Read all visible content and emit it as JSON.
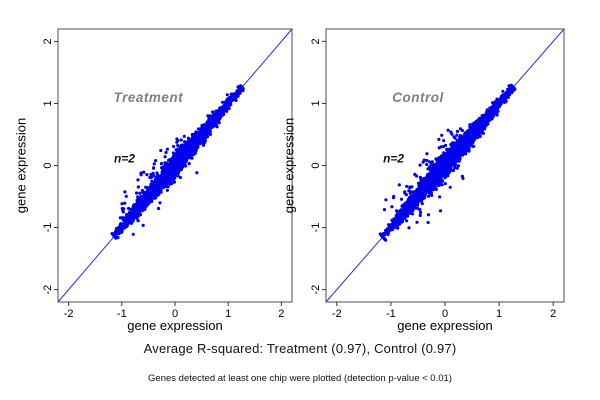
{
  "figure": {
    "captions": {
      "r_squared_summary": "Average R-squared: Treatment (0.97), Control (0.97)",
      "detection_note": "Genes detected at least one chip were plotted (detection p-value < 0.01)"
    },
    "colors": {
      "points": "#0000ee",
      "identity_line": "#2b2bee",
      "panel_border": "#4d4d4d",
      "tick_color": "#333333",
      "tick_text": "#000000",
      "panel_title": "#808080",
      "annotation": "#111111",
      "background": "#ffffff"
    }
  },
  "chart_data": [
    {
      "type": "scatter",
      "panel_title": "Treatment",
      "annotation": "n=2",
      "xlabel": "gene expression",
      "ylabel": "gene expression",
      "xlim": [
        -2.2,
        2.2
      ],
      "ylim": [
        -2.2,
        2.2
      ],
      "xticks": [
        -2,
        -1,
        0,
        1,
        2
      ],
      "yticks": [
        -2,
        -1,
        0,
        1,
        2
      ],
      "grid": false,
      "legend": false,
      "identity_line": true,
      "avg_r_squared": 0.97,
      "replicates": 2,
      "title_pos": [
        -0.5,
        1.02
      ],
      "annotation_pos": [
        -0.95,
        0.05
      ],
      "cloud": {
        "description": "dense band of genes along y=x from about (-1.14,-1.14) to (1.26,1.26), widest near middle, sparse outliers mostly above the band",
        "n": 3000,
        "outliers": 58,
        "seed": 101,
        "t_mean": 0.05,
        "t_sd": 0.55,
        "t_min": -1.14,
        "t_max": 1.26,
        "base_width_sd": 0.03,
        "mid_width_sd": 0.055,
        "outlier_t_range": [
          -0.95,
          0.35
        ],
        "outlier_min": 0.18,
        "outlier_sd": 0.17,
        "outlier_above_frac": 0.72,
        "point_radius_px": 1.6
      }
    },
    {
      "type": "scatter",
      "panel_title": "Control",
      "annotation": "n=2",
      "xlabel": "gene expression",
      "ylabel": "gene expression",
      "xlim": [
        -2.2,
        2.2
      ],
      "ylim": [
        -2.2,
        2.2
      ],
      "xticks": [
        -2,
        -1,
        0,
        1,
        2
      ],
      "yticks": [
        -2,
        -1,
        0,
        1,
        2
      ],
      "grid": false,
      "legend": false,
      "identity_line": true,
      "avg_r_squared": 0.97,
      "replicates": 2,
      "title_pos": [
        -0.5,
        1.02
      ],
      "annotation_pos": [
        -0.95,
        0.05
      ],
      "cloud": {
        "description": "dense band of genes along y=x from about (-1.15,-1.18) to (1.26,1.26), slightly noisier than Treatment, sparse outliers above and below band",
        "n": 3000,
        "outliers": 72,
        "seed": 202,
        "t_mean": 0.05,
        "t_sd": 0.55,
        "t_min": -1.15,
        "t_max": 1.26,
        "base_width_sd": 0.032,
        "mid_width_sd": 0.06,
        "outlier_t_range": [
          -0.95,
          0.4
        ],
        "outlier_min": 0.18,
        "outlier_sd": 0.17,
        "outlier_above_frac": 0.68,
        "point_radius_px": 1.6
      }
    }
  ]
}
